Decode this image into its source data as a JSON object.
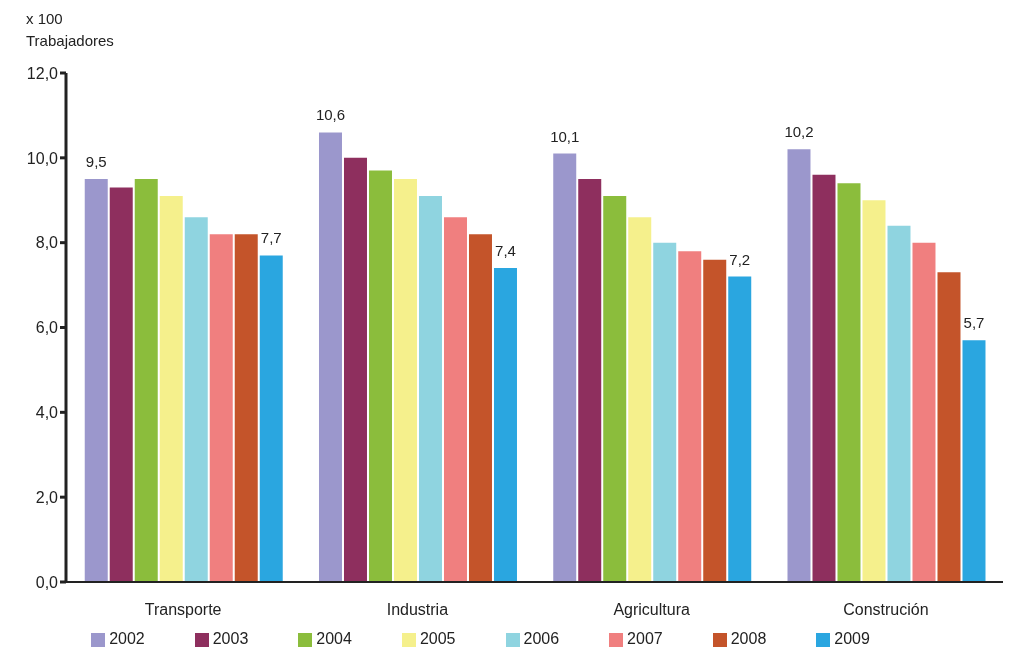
{
  "chart_data": {
    "type": "bar",
    "ylabel": "x 100 Trabajadores",
    "categories": [
      "Transporte",
      "Industria",
      "Agricultura",
      "Construción"
    ],
    "series": [
      {
        "name": "2002",
        "color": "#9b97cc",
        "values": [
          9.5,
          10.6,
          10.1,
          10.2
        ],
        "value_labels": [
          "9,5",
          "10,6",
          "10,1",
          "10,2"
        ]
      },
      {
        "name": "2003",
        "color": "#8e2f5e",
        "values": [
          9.3,
          10.0,
          9.5,
          9.6
        ]
      },
      {
        "name": "2004",
        "color": "#8bbd3c",
        "values": [
          9.5,
          9.7,
          9.1,
          9.4
        ]
      },
      {
        "name": "2005",
        "color": "#f5f08c",
        "values": [
          9.1,
          9.5,
          8.6,
          9.0
        ]
      },
      {
        "name": "2006",
        "color": "#8fd4e0",
        "values": [
          8.6,
          9.1,
          8.0,
          8.4
        ]
      },
      {
        "name": "2007",
        "color": "#f07f7f",
        "values": [
          8.2,
          8.6,
          7.8,
          8.0
        ]
      },
      {
        "name": "2008",
        "color": "#c4542a",
        "values": [
          8.2,
          8.2,
          7.6,
          7.3
        ]
      },
      {
        "name": "2009",
        "color": "#2aa6e0",
        "values": [
          7.7,
          7.4,
          7.2,
          5.7
        ],
        "value_labels": [
          "7,7",
          "7,4",
          "7,2",
          "5,7"
        ]
      }
    ],
    "ylim": [
      0,
      12
    ],
    "yticks": [
      {
        "value": 0,
        "label": "0,0"
      },
      {
        "value": 2,
        "label": "2,0"
      },
      {
        "value": 4,
        "label": "4,0"
      },
      {
        "value": 6,
        "label": "6,0"
      },
      {
        "value": 8,
        "label": "8,0"
      },
      {
        "value": 10,
        "label": "10,0"
      },
      {
        "value": 12,
        "label": "12,0"
      }
    ],
    "grid": false,
    "legend": "bottom"
  }
}
